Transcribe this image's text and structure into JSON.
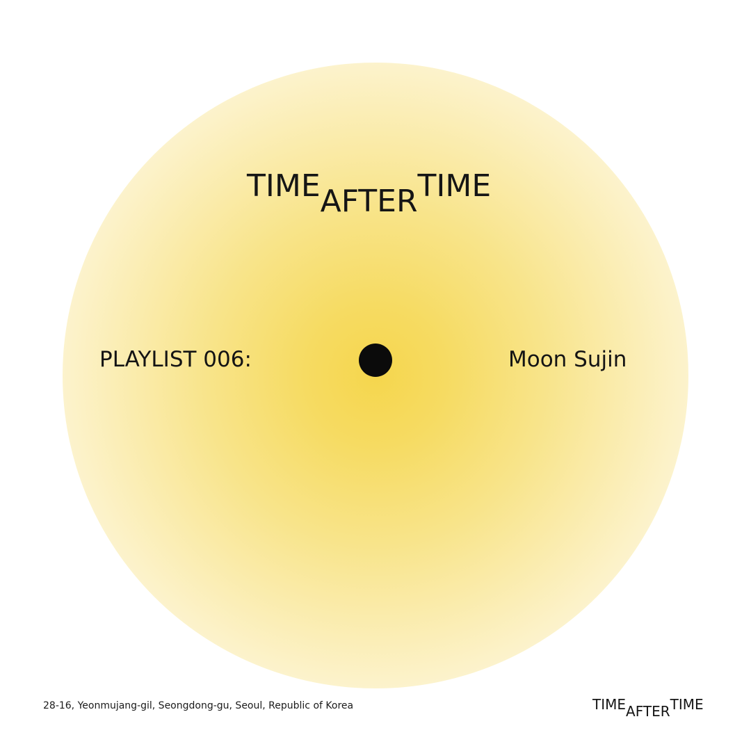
{
  "brand": {
    "word1": "TIME",
    "word2": "AFTER",
    "word3": "TIME"
  },
  "playlist_label": "PLAYLIST 006:",
  "artist_name": "Moon Sujin",
  "address": "28-16, Yeonmujang-gil, Seongdong-gu, Seoul, Republic of Korea",
  "colors": {
    "glow_center": "#f5d64d",
    "background": "#ffffff",
    "text": "#111111",
    "dot": "#0b0b0b"
  }
}
